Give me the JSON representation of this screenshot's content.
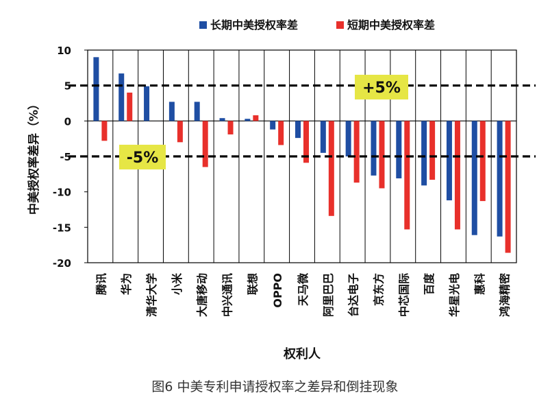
{
  "chart_data": {
    "type": "bar",
    "categories": [
      "腾讯",
      "华为",
      "清华大学",
      "小米",
      "大唐移动",
      "中兴通讯",
      "联想",
      "OPPO",
      "天马微",
      "阿里巴巴",
      "台达电子",
      "京东方",
      "中芯国际",
      "百度",
      "华星光电",
      "惠科",
      "鸿海精密"
    ],
    "series": [
      {
        "name": "长期中美授权率差",
        "color": "#1f4ea3",
        "values": [
          9.0,
          6.7,
          4.9,
          2.7,
          2.7,
          0.4,
          0.3,
          -1.2,
          -2.4,
          -4.5,
          -5.0,
          -7.7,
          -8.1,
          -9.1,
          -11.2,
          -16.1,
          -16.3
        ]
      },
      {
        "name": "短期中美授权率差",
        "color": "#e8302b",
        "values": [
          -2.8,
          4.0,
          0.0,
          -3.0,
          -6.5,
          -1.9,
          0.8,
          -3.4,
          -5.9,
          -13.4,
          -8.7,
          -9.5,
          -15.3,
          -8.3,
          -15.3,
          -11.3,
          -18.6
        ]
      }
    ],
    "xlabel": "权利人",
    "ylabel": "中美授权率差异（%）",
    "ylim": [
      -20,
      10
    ],
    "yticks": [
      10,
      5,
      0,
      -5,
      -10,
      -15,
      -20
    ],
    "reference_lines": [
      {
        "value": 5,
        "label": "+5%"
      },
      {
        "value": -5,
        "label": "-5%"
      }
    ],
    "legend_position": "top",
    "grid": "vertical category separators",
    "annotation_color": "#e6e645"
  },
  "caption": "图6  中美专利申请授权率之差异和倒挂现象"
}
